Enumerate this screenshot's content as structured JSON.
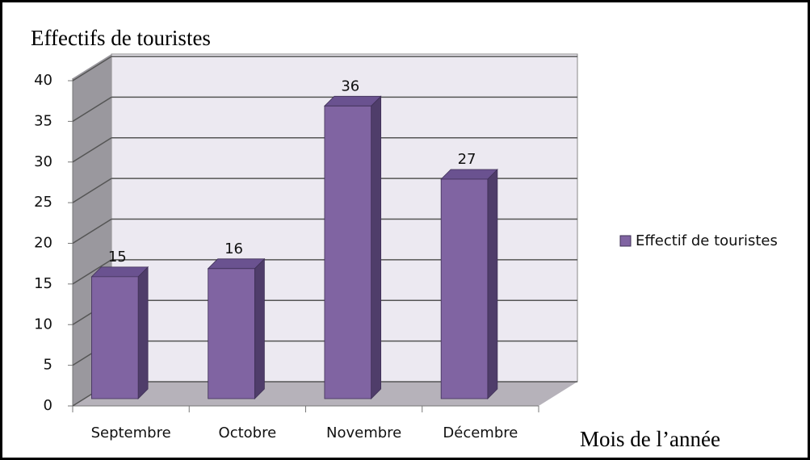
{
  "chart_data": {
    "type": "bar3d",
    "title": "Effectifs de touristes",
    "x_label": "Mois de l’année",
    "categories": [
      "Septembre",
      "Octobre",
      "Novembre",
      "Décembre"
    ],
    "series": [
      {
        "name": "Effectif de touristes",
        "color": "#8064a2",
        "values": [
          15,
          16,
          36,
          27
        ]
      }
    ],
    "ylim": [
      0,
      40
    ],
    "yticks": [
      0,
      5,
      10,
      15,
      20,
      25,
      30,
      35,
      40
    ],
    "grid": true,
    "legend": "right"
  }
}
